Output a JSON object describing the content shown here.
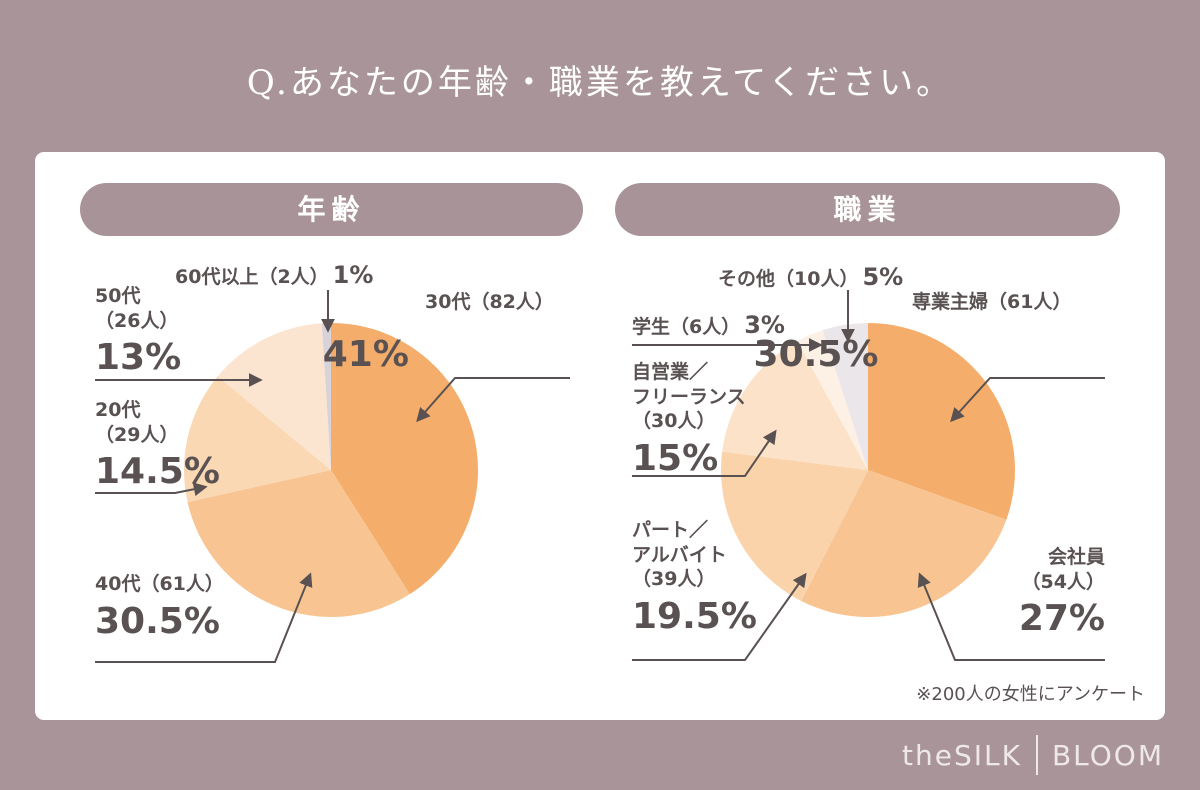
{
  "title": "Q.あなたの年齢・職業を教えてください。",
  "note": "※200人の女性にアンケート",
  "brand": [
    "theSILK",
    "BLOOM"
  ],
  "chart_data": [
    {
      "type": "pie",
      "title": "年齢",
      "categories": [
        "30代（82人）",
        "40代（61人）",
        "20代\n（29人）",
        "50代\n（26人）",
        "60代以上（2人）"
      ],
      "values": [
        41,
        30.5,
        14.5,
        13,
        1
      ],
      "value_labels": [
        "41%",
        "30.5%",
        "14.5%",
        "13%",
        "1%"
      ],
      "colors": [
        "#f4ad6a",
        "#f8c592",
        "#fad8b4",
        "#fce5d0",
        "#d8d2d9"
      ]
    },
    {
      "type": "pie",
      "title": "職業",
      "categories": [
        "専業主婦（61人）",
        "会社員\n（54人）",
        "パート／\nアルバイト\n（39人）",
        "自営業／\nフリーランス\n（30人）",
        "学生（6人）",
        "その他（10人）"
      ],
      "values": [
        30.5,
        27,
        19.5,
        15,
        3,
        5
      ],
      "value_labels": [
        "30.5%",
        "27%",
        "19.5%",
        "15%",
        "3%",
        "5%"
      ],
      "colors": [
        "#f4ad6a",
        "#f8c592",
        "#fad3ab",
        "#fce2c8",
        "#fdf0e4",
        "#ebe6ea"
      ]
    }
  ]
}
